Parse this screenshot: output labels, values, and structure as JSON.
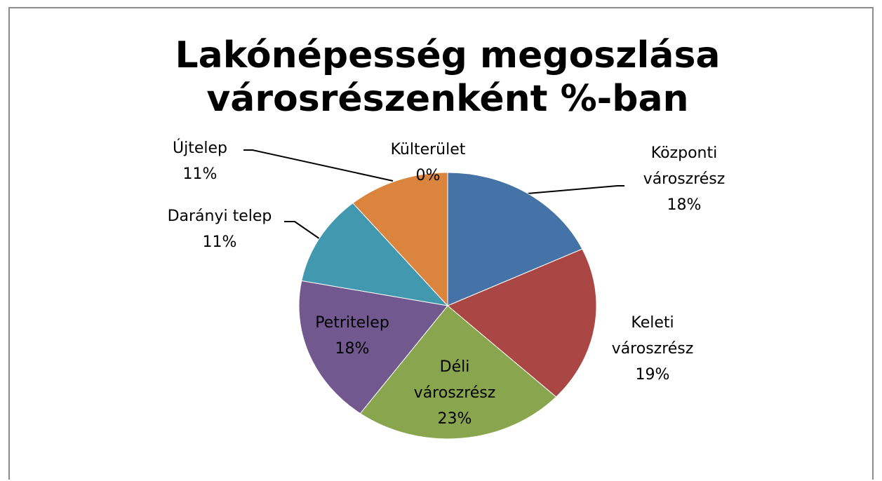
{
  "chart_data": {
    "type": "pie",
    "title": "Lakónépesség megoszlása városrészenként %-ban",
    "categories": [
      "Központi városzrész",
      "Keleti városzrész",
      "Déli városzrész",
      "Petritelep",
      "Darányi telep",
      "Újtelep",
      "Külterület"
    ],
    "values": [
      18,
      19,
      23,
      18,
      11,
      11,
      0
    ],
    "value_labels": [
      "18%",
      "19%",
      "23%",
      "18%",
      "11%",
      "11%",
      "0%"
    ],
    "colors": [
      "#4572a7",
      "#aa4643",
      "#89a54e",
      "#71588f",
      "#4198af",
      "#db843d",
      "#93a9cf"
    ]
  }
}
